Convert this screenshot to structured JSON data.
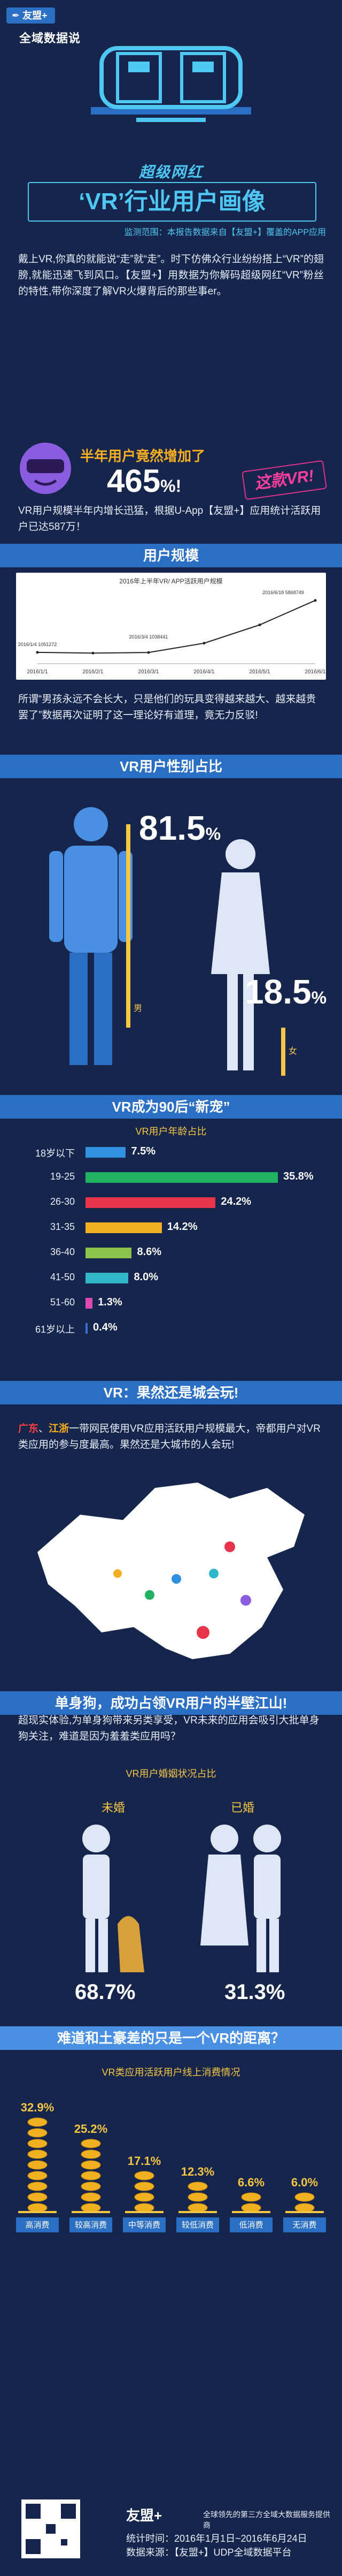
{
  "brand": {
    "logo_text": "友盟+",
    "sub": "全域数据说",
    "accent": "#2a6fc4"
  },
  "hero": {
    "slogan": "超级网红",
    "title": "‘VR’行业用户画像",
    "scope": "监测范围：本报告数据来自【友盟+】覆盖的APP应用"
  },
  "intro": "戴上VR,你真的就能说“走”就“走”。时下仿佛众行业纷纷搭上“VR”的翅膀,就能迅速飞到风口。【友盟+】用数据为你解码超级网红“VR”粉丝的特性,带你深度了解VR火爆背后的那些事er。",
  "growth": {
    "label": "半年用户竟然增加了",
    "value": "465",
    "unit": "%!",
    "badge": "这款VR!"
  },
  "growth_text": "VR用户规模半年内增长迅猛，根据U-App【友盟+】应用统计活跃用户已达587万！",
  "sections": {
    "scale": "用户规模",
    "gender": "VR用户性别占比",
    "age": "VR成为90后“新宠”",
    "city": "VR：果然还是城会玩!",
    "marriage": "单身狗，成功占领VR用户的半壁江山!",
    "consume": "难道和土豪差的只是一个VR的距离？"
  },
  "scale_text": "所谓“男孩永远不会长大，只是他们的玩具变得越来越大、越来越贵罢了”数据再次证明了这一理论好有道理，竟无力反驳!",
  "gender": {
    "male": "81.5",
    "female": "18.5",
    "unit": "%",
    "male_label": "男",
    "female_label": "女"
  },
  "age_subtitle": "VR用户年龄占比",
  "city_text_1": "广东",
  "city_text_2": "、",
  "city_text_3": "江浙",
  "city_text_4": "一带网民使用VR应用活跃用户规模最大，帝都用户对VR类应用的参与度最高。果然还是大城市的人会玩!",
  "marriage_intro": "超现实体验,为单身狗带来另类享受，VR未来的应用会吸引大批单身狗关注，难道是因为羞羞类应用吗？",
  "marriage_subtitle": "VR用户婚姻状况占比",
  "marriage": {
    "single_label": "未婚",
    "married_label": "已婚",
    "single": "68.7%",
    "married": "31.3%"
  },
  "consume_subtitle": "VR类应用活跃用户线上消费情况",
  "footer": {
    "brand": "友盟+",
    "desc": "全球领先的第三方全域大数据服务提供商",
    "period": "统计时间：2016年1月1日~2016年6月24日",
    "source": "数据来源：【友盟+】UDP全域数据平台"
  },
  "chart_data": [
    {
      "type": "line",
      "title": "2016年上半年VR/ APP活跃用户规模",
      "x": [
        "2016/1/1",
        "2016/2/1",
        "2016/3/1",
        "2016/4/1",
        "2016/5/1",
        "2016/6/1"
      ],
      "annotations": [
        "2016/3/4 1038441",
        "2016/1/4 1051272",
        "2016/6/18 5868749"
      ],
      "series": [
        {
          "values": [
            1051272,
            980000,
            1038441,
            1900000,
            3600000,
            5868749
          ]
        }
      ]
    },
    {
      "type": "bar",
      "title": "VR用户年龄占比",
      "categories": [
        "18岁以下",
        "19-25",
        "26-30",
        "31-35",
        "36-40",
        "41-50",
        "51-60",
        "61岁以上"
      ],
      "values": [
        7.5,
        35.8,
        24.2,
        14.2,
        8.6,
        8.0,
        1.3,
        0.4
      ],
      "labels": [
        "7.5%",
        "35.8%",
        "24.2%",
        "14.2%",
        "8.6%",
        "8.0%",
        "1.3%",
        "0.4%"
      ],
      "colors": [
        "#2f8fe0",
        "#20b060",
        "#e8344a",
        "#f0b020",
        "#8bc34a",
        "#2fb9c8",
        "#e04ab0",
        "#3a70d0"
      ]
    },
    {
      "type": "bar",
      "title": "VR类应用活跃用户线上消费情况",
      "categories": [
        "高消费",
        "较高消费",
        "中等消费",
        "较低消费",
        "低消费",
        "无消费"
      ],
      "values": [
        32.9,
        25.2,
        17.1,
        12.3,
        6.6,
        6.0
      ],
      "labels": [
        "32.9%",
        "25.2%",
        "17.1%",
        "12.3%",
        "6.6%",
        "6.0%"
      ]
    }
  ]
}
